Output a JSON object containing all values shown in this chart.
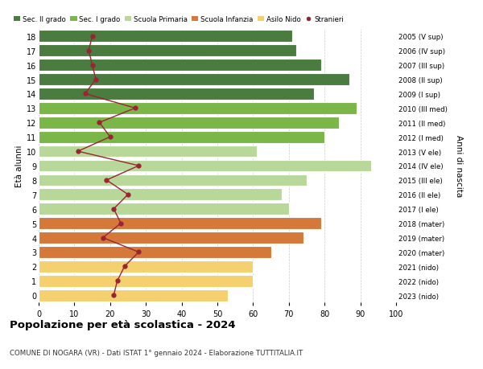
{
  "ages": [
    18,
    17,
    16,
    15,
    14,
    13,
    12,
    11,
    10,
    9,
    8,
    7,
    6,
    5,
    4,
    3,
    2,
    1,
    0
  ],
  "years": [
    "2005 (V sup)",
    "2006 (IV sup)",
    "2007 (III sup)",
    "2008 (II sup)",
    "2009 (I sup)",
    "2010 (III med)",
    "2011 (II med)",
    "2012 (I med)",
    "2013 (V ele)",
    "2014 (IV ele)",
    "2015 (III ele)",
    "2016 (II ele)",
    "2017 (I ele)",
    "2018 (mater)",
    "2019 (mater)",
    "2020 (mater)",
    "2021 (nido)",
    "2022 (nido)",
    "2023 (nido)"
  ],
  "bar_values": [
    71,
    72,
    79,
    87,
    77,
    89,
    84,
    80,
    61,
    93,
    75,
    68,
    70,
    79,
    74,
    65,
    60,
    60,
    53
  ],
  "stranieri_values": [
    15,
    14,
    15,
    16,
    13,
    27,
    17,
    20,
    11,
    28,
    19,
    25,
    21,
    23,
    18,
    28,
    24,
    22,
    21
  ],
  "bar_colors": [
    "#4a7c3f",
    "#4a7c3f",
    "#4a7c3f",
    "#4a7c3f",
    "#4a7c3f",
    "#7ab648",
    "#7ab648",
    "#7ab648",
    "#b8d89a",
    "#b8d89a",
    "#b8d89a",
    "#b8d89a",
    "#b8d89a",
    "#d4793a",
    "#d4793a",
    "#d4793a",
    "#f5d06e",
    "#f5d06e",
    "#f5d06e"
  ],
  "legend_labels": [
    "Sec. II grado",
    "Sec. I grado",
    "Scuola Primaria",
    "Scuola Infanzia",
    "Asilo Nido",
    "Stranieri"
  ],
  "legend_colors": [
    "#4a7c3f",
    "#7ab648",
    "#b8d89a",
    "#d4793a",
    "#f5d06e",
    "#9b2335"
  ],
  "stranieri_color": "#9b2335",
  "title": "Popolazione per età scolastica - 2024",
  "subtitle": "COMUNE DI NOGARA (VR) - Dati ISTAT 1° gennaio 2024 - Elaborazione TUTTITALIA.IT",
  "ylabel_left": "Età alunni",
  "ylabel_right": "Anni di nascita",
  "xlim": [
    0,
    100
  ],
  "xticks": [
    0,
    10,
    20,
    30,
    40,
    50,
    60,
    70,
    80,
    90,
    100
  ],
  "background_color": "#ffffff",
  "bar_edge_color": "#ffffff",
  "grid_color": "#cccccc"
}
